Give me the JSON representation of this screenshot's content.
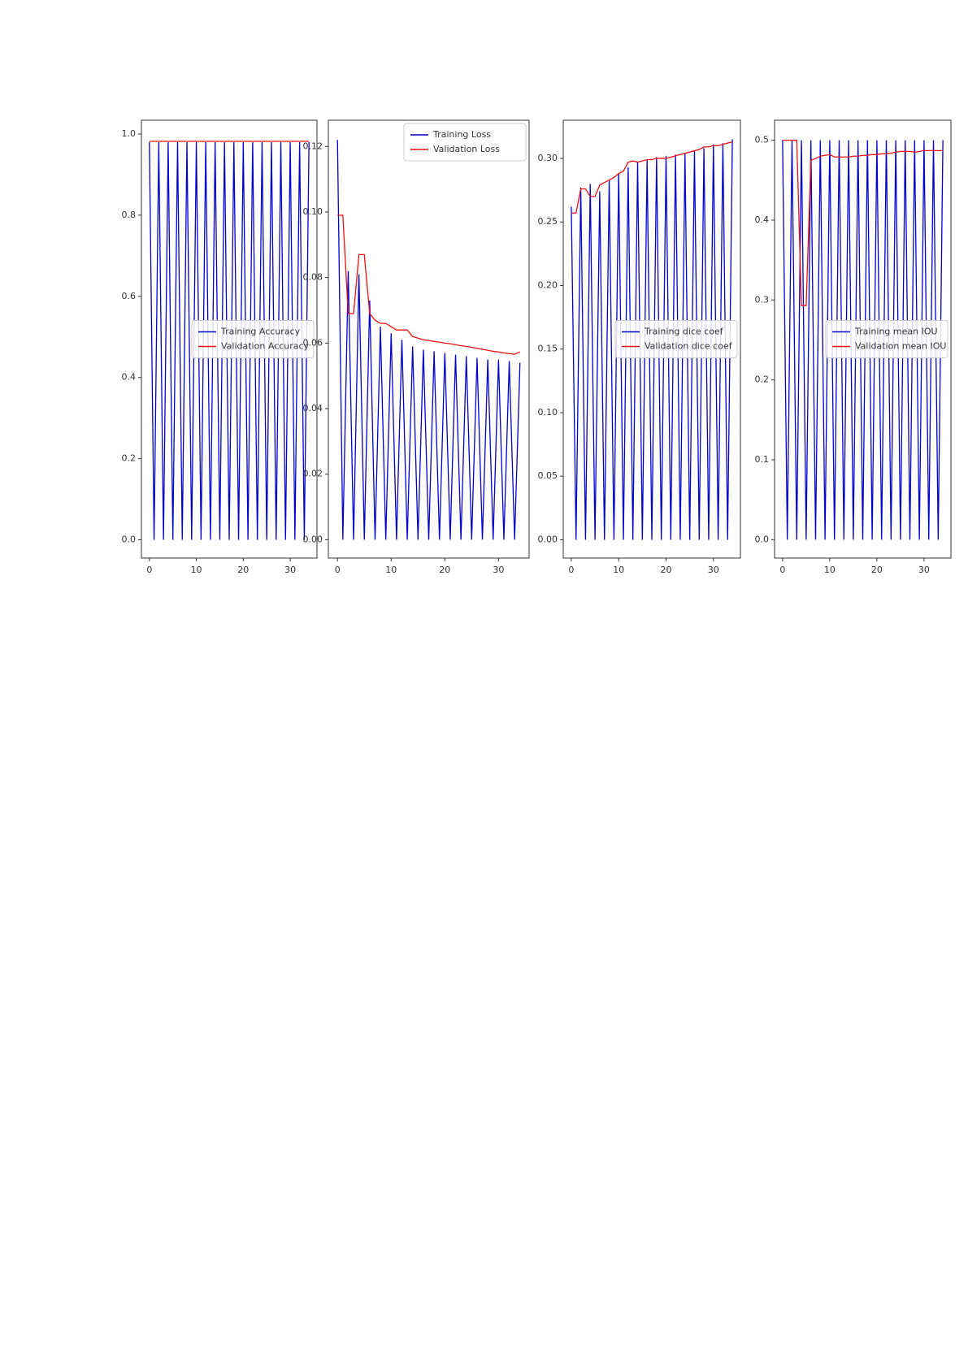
{
  "chart_data": [
    {
      "type": "line",
      "legend": "center right",
      "grid": false,
      "x": [
        0,
        1,
        2,
        3,
        4,
        5,
        6,
        7,
        8,
        9,
        10,
        11,
        12,
        13,
        14,
        15,
        16,
        17,
        18,
        19,
        20,
        21,
        22,
        23,
        24,
        25,
        26,
        27,
        28,
        29,
        30,
        31,
        32,
        33,
        34
      ],
      "xlim": [
        -1.7,
        35.7
      ],
      "xticks": [
        0,
        10,
        20,
        30
      ],
      "ylim": [
        -0.045,
        1.034
      ],
      "yticks": [
        {
          "value": 0,
          "label": "0.0"
        },
        0.2,
        0.4,
        0.6,
        0.8,
        {
          "value": 1,
          "label": "1.0"
        }
      ],
      "series": [
        {
          "name": "Training Accuracy",
          "color": "#0000cc",
          "values": [
            0.98,
            0,
            0.98,
            0,
            0.98,
            0,
            0.98,
            0,
            0.98,
            0,
            0.98,
            0,
            0.98,
            0,
            0.98,
            0,
            0.98,
            0,
            0.98,
            0,
            0.98,
            0,
            0.98,
            0,
            0.98,
            0,
            0.98,
            0,
            0.98,
            0,
            0.98,
            0,
            0.98,
            0,
            0.98
          ]
        },
        {
          "name": "Validation Accuracy",
          "color": "#ee1111",
          "values": [
            0.982,
            0.982,
            0.982,
            0.982,
            0.982,
            0.982,
            0.982,
            0.982,
            0.982,
            0.982,
            0.982,
            0.982,
            0.982,
            0.982,
            0.982,
            0.982,
            0.982,
            0.982,
            0.982,
            0.982,
            0.982,
            0.982,
            0.982,
            0.982,
            0.982,
            0.982,
            0.982,
            0.982,
            0.982,
            0.982,
            0.982,
            0.982,
            0.982,
            0.982,
            0.982
          ]
        }
      ]
    },
    {
      "type": "line",
      "legend": "upper right",
      "grid": false,
      "x": [
        0,
        1,
        2,
        3,
        4,
        5,
        6,
        7,
        8,
        9,
        10,
        11,
        12,
        13,
        14,
        15,
        16,
        17,
        18,
        19,
        20,
        21,
        22,
        23,
        24,
        25,
        26,
        27,
        28,
        29,
        30,
        31,
        32,
        33,
        34
      ],
      "xlim": [
        -1.7,
        35.7
      ],
      "xticks": [
        0,
        10,
        20,
        30
      ],
      "ylim": [
        -0.0056,
        0.128
      ],
      "yticks": [
        {
          "value": 0,
          "label": "0.00"
        },
        0.02,
        0.04,
        0.06,
        0.08,
        {
          "value": 0.1,
          "label": "0.10"
        },
        0.12
      ],
      "series": [
        {
          "name": "Training Loss",
          "color": "#0000cc",
          "values": [
            0.122,
            0,
            0.082,
            0,
            0.081,
            0,
            0.073,
            0,
            0.065,
            0,
            0.063,
            0,
            0.061,
            0,
            0.059,
            0,
            0.058,
            0,
            0.0575,
            0,
            0.057,
            0,
            0.0565,
            0,
            0.056,
            0,
            0.0555,
            0,
            0.055,
            0,
            0.055,
            0,
            0.0545,
            0,
            0.054
          ]
        },
        {
          "name": "Validation Loss",
          "color": "#ee1111",
          "values": [
            0.099,
            0.099,
            0.069,
            0.069,
            0.087,
            0.087,
            0.069,
            0.067,
            0.066,
            0.066,
            0.065,
            0.064,
            0.064,
            0.064,
            0.062,
            0.0615,
            0.061,
            0.0608,
            0.0605,
            0.0603,
            0.06,
            0.0598,
            0.0595,
            0.0592,
            0.059,
            0.0587,
            0.0584,
            0.0581,
            0.0578,
            0.0575,
            0.0573,
            0.057,
            0.0568,
            0.0566,
            0.0573
          ]
        }
      ]
    },
    {
      "type": "line",
      "legend": "center right",
      "grid": false,
      "x": [
        0,
        1,
        2,
        3,
        4,
        5,
        6,
        7,
        8,
        9,
        10,
        11,
        12,
        13,
        14,
        15,
        16,
        17,
        18,
        19,
        20,
        21,
        22,
        23,
        24,
        25,
        26,
        27,
        28,
        29,
        30,
        31,
        32,
        33,
        34
      ],
      "xlim": [
        -1.7,
        35.7
      ],
      "xticks": [
        0,
        10,
        20,
        30
      ],
      "ylim": [
        -0.0144,
        0.33
      ],
      "yticks": [
        {
          "value": 0,
          "label": "0.00"
        },
        0.05,
        {
          "value": 0.1,
          "label": "0.10"
        },
        0.15,
        {
          "value": 0.2,
          "label": "0.20"
        },
        0.25,
        {
          "value": 0.3,
          "label": "0.30"
        }
      ],
      "series": [
        {
          "name": "Training dice coef",
          "color": "#0000cc",
          "values": [
            0.262,
            0,
            0.277,
            0,
            0.28,
            0,
            0.274,
            0,
            0.283,
            0,
            0.288,
            0,
            0.293,
            0,
            0.297,
            0,
            0.299,
            0,
            0.301,
            0,
            0.302,
            0,
            0.303,
            0,
            0.304,
            0,
            0.306,
            0,
            0.308,
            0,
            0.311,
            0,
            0.312,
            0,
            0.315
          ]
        },
        {
          "name": "Validation dice coef",
          "color": "#ee1111",
          "values": [
            0.257,
            0.257,
            0.276,
            0.276,
            0.27,
            0.27,
            0.279,
            0.281,
            0.283,
            0.285,
            0.288,
            0.29,
            0.297,
            0.298,
            0.297,
            0.298,
            0.299,
            0.299,
            0.3,
            0.3,
            0.3,
            0.301,
            0.302,
            0.303,
            0.304,
            0.305,
            0.306,
            0.307,
            0.309,
            0.309,
            0.31,
            0.31,
            0.311,
            0.312,
            0.313
          ]
        }
      ]
    },
    {
      "type": "line",
      "legend": "center right",
      "grid": false,
      "x": [
        0,
        1,
        2,
        3,
        4,
        5,
        6,
        7,
        8,
        9,
        10,
        11,
        12,
        13,
        14,
        15,
        16,
        17,
        18,
        19,
        20,
        21,
        22,
        23,
        24,
        25,
        26,
        27,
        28,
        29,
        30,
        31,
        32,
        33,
        34
      ],
      "xlim": [
        -1.7,
        35.7
      ],
      "xticks": [
        0,
        10,
        20,
        30
      ],
      "ylim": [
        -0.023,
        0.525
      ],
      "yticks": [
        {
          "value": 0,
          "label": "0.0"
        },
        0.1,
        0.2,
        0.3,
        0.4,
        0.5
      ],
      "series": [
        {
          "name": "Training mean IOU",
          "color": "#0000cc",
          "values": [
            0.5,
            0,
            0.5,
            0,
            0.5,
            0,
            0.5,
            0,
            0.5,
            0,
            0.5,
            0,
            0.5,
            0,
            0.5,
            0,
            0.5,
            0,
            0.5,
            0,
            0.5,
            0,
            0.5,
            0,
            0.5,
            0,
            0.5,
            0,
            0.5,
            0,
            0.5,
            0,
            0.5,
            0,
            0.5
          ]
        },
        {
          "name": "Validation mean IOU",
          "color": "#ee1111",
          "values": [
            0.5,
            0.5,
            0.5,
            0.5,
            0.293,
            0.293,
            0.475,
            0.477,
            0.48,
            0.481,
            0.482,
            0.479,
            0.479,
            0.479,
            0.479,
            0.48,
            0.48,
            0.481,
            0.481,
            0.482,
            0.482,
            0.483,
            0.483,
            0.484,
            0.485,
            0.486,
            0.486,
            0.486,
            0.485,
            0.486,
            0.487,
            0.487,
            0.487,
            0.487,
            0.487
          ]
        }
      ]
    }
  ]
}
